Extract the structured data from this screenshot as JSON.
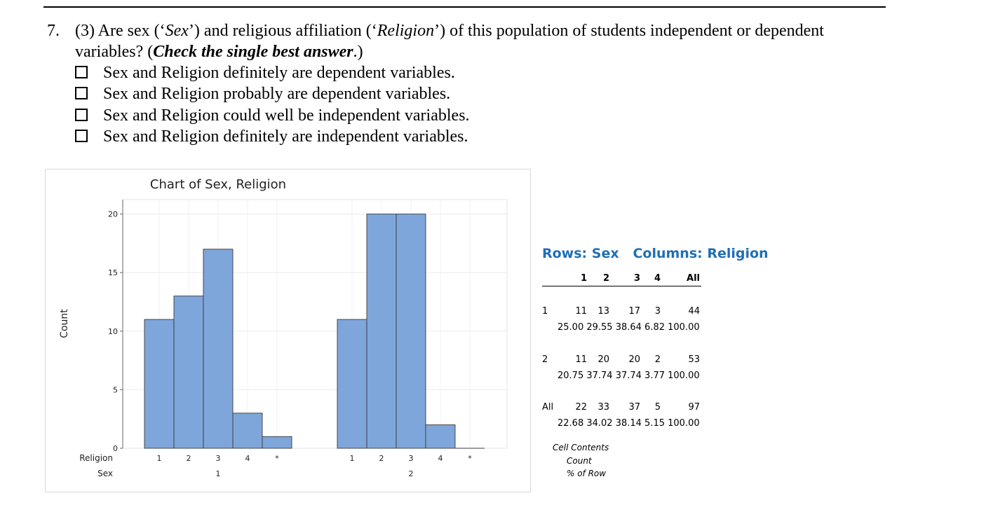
{
  "question": {
    "number": "7.",
    "line1_prefix": "(3) Are sex (‘",
    "var1": "Sex",
    "line1_mid": "’) and religious affiliation (‘",
    "var2": "Religion",
    "line1_suffix": "’) of this population of students independent or dependent",
    "line2_prefix": "variables?  (",
    "line2_emph": "Check the single best answer",
    "line2_suffix": ".)"
  },
  "options": [
    "Sex and Religion definitely are dependent variables.",
    "Sex and Religion probably are dependent variables.",
    "Sex and Religion could well be independent variables.",
    "Sex and Religion definitely are independent variables."
  ],
  "chart_data": {
    "type": "bar",
    "title": "Chart of Sex, Religion",
    "ylabel": "Count",
    "ylim": [
      0,
      21
    ],
    "yticks": [
      "0",
      "5",
      "10",
      "15",
      "20"
    ],
    "xlabel_rows": [
      "Religion",
      "Sex"
    ],
    "grid": true,
    "bar_color": "#7ea6da",
    "groups": [
      {
        "sex": "1",
        "categories": [
          "1",
          "2",
          "3",
          "4",
          "*"
        ],
        "values": [
          11,
          13,
          17,
          3,
          1
        ]
      },
      {
        "sex": "2",
        "categories": [
          "1",
          "2",
          "3",
          "4",
          "*"
        ],
        "values": [
          11,
          20,
          20,
          2,
          0
        ]
      }
    ]
  },
  "table": {
    "title_rows": "Rows: Sex",
    "title_cols": "Columns: Religion",
    "accent": "#1f6fb5",
    "columns": [
      "1",
      "2",
      "3",
      "4",
      "All"
    ],
    "rows": [
      {
        "label": "1",
        "counts": [
          "11",
          "13",
          "17",
          "3",
          "44"
        ],
        "pcts": [
          "25.00",
          "29.55",
          "38.64",
          "6.82",
          "100.00"
        ]
      },
      {
        "label": "2",
        "counts": [
          "11",
          "20",
          "20",
          "2",
          "53"
        ],
        "pcts": [
          "20.75",
          "37.74",
          "37.74",
          "3.77",
          "100.00"
        ]
      },
      {
        "label": "All",
        "counts": [
          "22",
          "33",
          "37",
          "5",
          "97"
        ],
        "pcts": [
          "22.68",
          "34.02",
          "38.14",
          "5.15",
          "100.00"
        ]
      }
    ],
    "cell_contents_label": "Cell Contents",
    "cell_contents_items": [
      "Count",
      "% of Row"
    ]
  }
}
